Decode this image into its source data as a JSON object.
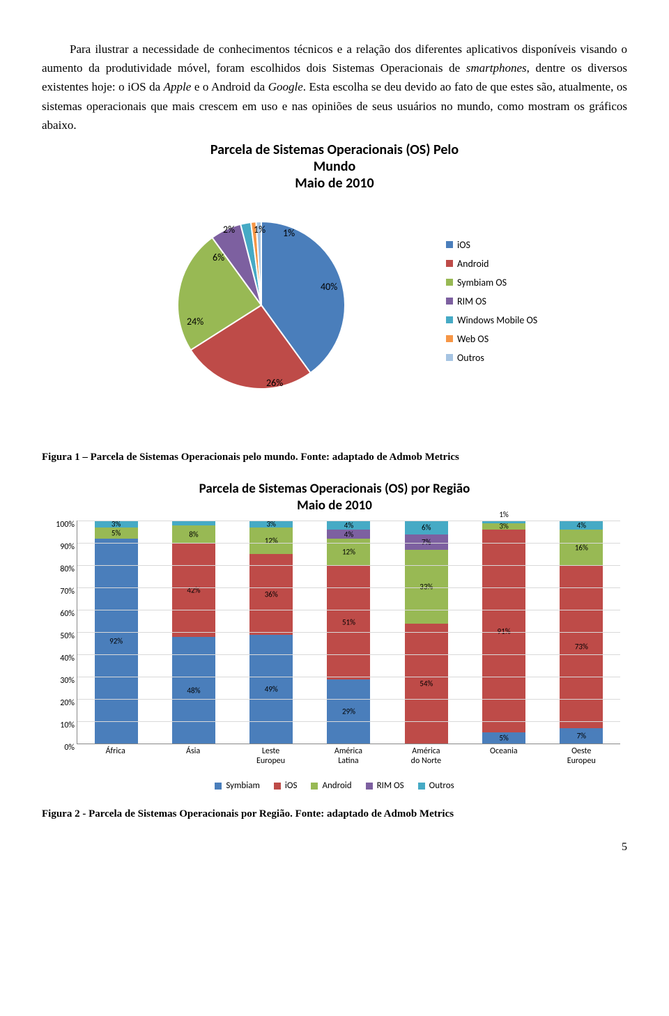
{
  "para1_a": "Para ilustrar a necessidade de conhecimentos técnicos e a relação dos diferentes aplicativos disponíveis visando o aumento da produtividade móvel, foram escolhidos dois Sistemas Operacionais de ",
  "para1_em1": "smartphones",
  "para1_b": ", dentre os diversos existentes hoje: o iOS da ",
  "para1_em2": "Apple",
  "para1_c": " e o Android da ",
  "para1_em3": "Google",
  "para1_d": ". Esta escolha se deu devido ao fato de que estes são, atualmente, os sistemas operacionais que mais crescem em uso e nas opiniões de seus usuários no mundo, como mostram os gráficos abaixo.",
  "chart1": {
    "title_l1": "Parcela de Sistemas Operacionais (OS) Pelo",
    "title_l2": "Mundo",
    "title_l3": "Maio de 2010",
    "title_fontsize": 20,
    "colors": {
      "ios": "#4a7ebb",
      "android": "#be4b48",
      "symbiam": "#98b954",
      "rim": "#7d60a0",
      "windows": "#46aac5",
      "web": "#f69646",
      "outros": "#a6c4e2"
    },
    "slices": [
      {
        "label": "iOS",
        "value": 40,
        "color": "#4a7ebb"
      },
      {
        "label": "Android",
        "value": 26,
        "color": "#be4b48"
      },
      {
        "label": "Symbiam OS",
        "value": 24,
        "color": "#98b954"
      },
      {
        "label": "RIM OS",
        "value": 6,
        "color": "#7d60a0"
      },
      {
        "label": "Windows Mobile OS",
        "value": 2,
        "color": "#46aac5"
      },
      {
        "label": "Web OS",
        "value": 1,
        "color": "#f69646"
      },
      {
        "label": "Outros",
        "value": 1,
        "color": "#a6c4e2"
      }
    ],
    "labels": {
      "p40": "40%",
      "p26": "26%",
      "p24": "24%",
      "p6": "6%",
      "p2": "2%",
      "p1a": "1%",
      "p1b": "1%"
    }
  },
  "caption1": "Figura 1 – Parcela de Sistemas Operacionais pelo mundo. Fonte: adaptado de Admob Metrics",
  "chart2": {
    "title_l1": "Parcela de Sistemas Operacionais (OS) por Região",
    "title_l2": "Maio de 2010",
    "ylim_max": 100,
    "ytick_step": 10,
    "yticks": [
      "0%",
      "10%",
      "20%",
      "30%",
      "40%",
      "50%",
      "60%",
      "70%",
      "80%",
      "90%",
      "100%"
    ],
    "series_colors": {
      "symbiam": "#4a7ebb",
      "ios": "#be4b48",
      "android": "#98b954",
      "rim": "#7d60a0",
      "outros": "#46aac5"
    },
    "series_labels": {
      "symbiam": "Symbiam",
      "ios": "iOS",
      "android": "Android",
      "rim": "RIM OS",
      "outros": "Outros"
    },
    "categories": [
      {
        "name": "África",
        "symbiam": 92,
        "ios": 0,
        "android": 5,
        "rim": 0,
        "outros": 3,
        "top_label": ""
      },
      {
        "name": "Ásia",
        "symbiam": 48,
        "ios": 42,
        "android": 8,
        "rim": 0,
        "outros": 2,
        "top_label": ""
      },
      {
        "name": "Leste Europeu",
        "symbiam": 49,
        "ios": 36,
        "android": 12,
        "rim": 0,
        "outros": 3,
        "top_label": ""
      },
      {
        "name": "América Latina",
        "symbiam": 29,
        "ios": 51,
        "android": 12,
        "rim": 4,
        "outros": 4,
        "top_label": ""
      },
      {
        "name": "América do Norte",
        "symbiam": 0,
        "ios": 54,
        "android": 33,
        "rim": 7,
        "outros": 6,
        "top_label": ""
      },
      {
        "name": "Oceania",
        "symbiam": 5,
        "ios": 91,
        "android": 3,
        "rim": 0,
        "outros": 1,
        "top_label": "1%"
      },
      {
        "name": "Oeste Europeu",
        "symbiam": 7,
        "ios": 73,
        "android": 16,
        "rim": 0,
        "outros": 4,
        "top_label": ""
      }
    ]
  },
  "caption2": "Figura 2 - Parcela de Sistemas Operacionais por Região. Fonte: adaptado de Admob Metrics",
  "page_number": "5"
}
